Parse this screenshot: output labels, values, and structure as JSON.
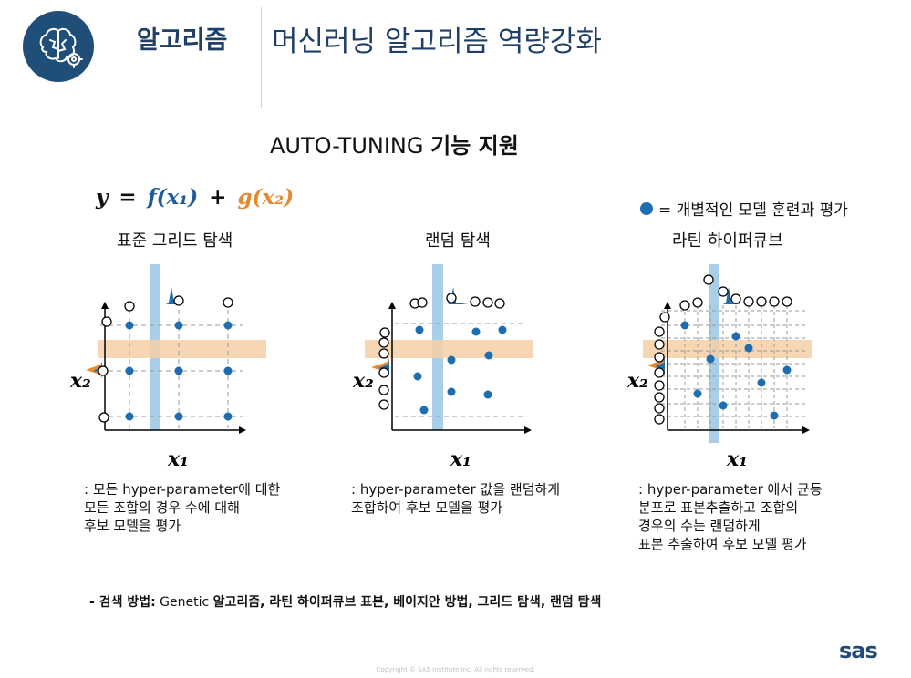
{
  "header": {
    "section": "알고리즘",
    "title": "머신러닝 알고리즘 역량강화",
    "brand": "sas",
    "copyright": "Copyright © SAS Institute Inc. All rights reserved."
  },
  "subtitle": {
    "part1": "AUTO-TUNING ",
    "part2": "기능 지원"
  },
  "formula": {
    "y": "y",
    "eq": "=",
    "f": "f(x₁)",
    "plus": "+",
    "g": "g(x₂)"
  },
  "legend": {
    "text": "= 개별적인 모델 훈련과 평가"
  },
  "panels": [
    {
      "title": "표준 그리드 탐색",
      "x_label": "x₁",
      "y_label": "x₂",
      "desc": [
        ": 모든 hyper-parameter에 대한",
        " 모든 조합의 경우 수에 대해",
        " 후보 모델을 평가"
      ]
    },
    {
      "title": "랜덤 탐색",
      "x_label": "x₁",
      "y_label": "x₂",
      "desc": [
        ": hyper-parameter 값을 랜덤하게",
        " 조합하여 후보 모델을 평가"
      ]
    },
    {
      "title": "라틴 하이퍼큐브",
      "x_label": "x₁",
      "y_label": "x₂",
      "desc": [
        ": hyper-parameter 에서 균등",
        " 분포로 표본추출하고 조합의",
        " 경우의 수는 랜덤하게",
        " 표본 추출하여 후보 모델 평가"
      ]
    }
  ],
  "search_methods": {
    "prefix": "- 검색 방법:",
    "genetic": " Genetic ",
    "rest": "알고리즘, 라틴 하이퍼큐브 표본, 베이지안 방법, 그리드 탐색, 랜덤 탐색"
  },
  "colors": {
    "point": "#1d6db3",
    "v_band": "#a9cfe8",
    "h_band": "#f6cfa7",
    "title": "#1f3f66",
    "orange": "#e58a2e"
  }
}
